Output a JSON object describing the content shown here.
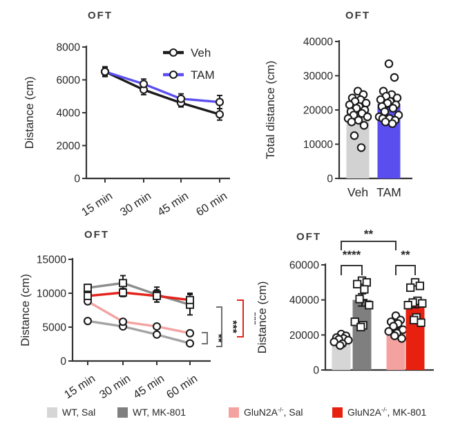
{
  "figure": {
    "background": "#ffffff",
    "text_color": "#262626",
    "axis_color": "#333333"
  },
  "chart_data": [
    {
      "id": "tl",
      "type": "line",
      "title": "OFT",
      "ylabel": "Distance (cm)",
      "xlabel": "",
      "ylim": [
        0,
        8000
      ],
      "yticks": [
        0,
        2000,
        4000,
        6000,
        8000
      ],
      "categories": [
        "15 min",
        "30 min",
        "45 min",
        "60 min"
      ],
      "legend_position": "top-right",
      "grid": false,
      "series": [
        {
          "name": "Veh",
          "color": "#1a1a1a",
          "marker": "circle",
          "values": [
            6500,
            5400,
            4600,
            3900
          ],
          "errors": [
            300,
            300,
            250,
            350
          ]
        },
        {
          "name": "TAM",
          "color": "#5a4fee",
          "marker": "circle",
          "values": [
            6500,
            5750,
            4850,
            4650
          ],
          "errors": [
            250,
            300,
            300,
            400
          ]
        }
      ]
    },
    {
      "id": "tr",
      "type": "bar",
      "title": "OFT",
      "ylabel": "Total distance (cm)",
      "xlabel": "",
      "ylim": [
        0,
        40000
      ],
      "yticks": [
        0,
        10000,
        20000,
        30000,
        40000
      ],
      "categories": [
        "Veh",
        "TAM"
      ],
      "show_category_labels": true,
      "grid": false,
      "bars": [
        {
          "name": "Veh",
          "color": "#d2d2d2",
          "value": 20300,
          "error": 900,
          "marker": "circle",
          "points": [
            9000,
            12500,
            15500,
            16500,
            17000,
            17500,
            18000,
            18500,
            19000,
            19500,
            20000,
            20500,
            21000,
            21500,
            22000,
            22500,
            23000,
            23500,
            24500,
            25500
          ]
        },
        {
          "name": "TAM",
          "color": "#5a4fee",
          "value": 21800,
          "error": 1000,
          "marker": "circle",
          "points": [
            16000,
            16500,
            17000,
            17500,
            17500,
            18000,
            18500,
            19500,
            20500,
            21000,
            21500,
            22000,
            22500,
            23000,
            23500,
            24000,
            24500,
            25500,
            29500,
            33500
          ]
        }
      ]
    },
    {
      "id": "bl",
      "type": "line",
      "title": "OFT",
      "ylabel": "Distance (cm)",
      "xlabel": "",
      "ylim": [
        0,
        15000
      ],
      "yticks": [
        0,
        5000,
        10000,
        15000
      ],
      "categories": [
        "15 min",
        "30 min",
        "45 min",
        "60 min"
      ],
      "grid": false,
      "series": [
        {
          "name": "WT, Sal",
          "color": "#a3a3a3",
          "marker": "circle",
          "values": [
            5900,
            5100,
            3900,
            2600
          ],
          "errors": [
            250,
            300,
            250,
            250
          ]
        },
        {
          "name": "WT, MK-801",
          "color": "#8c8c8c",
          "marker": "square",
          "values": [
            10800,
            11500,
            9800,
            8300
          ],
          "errors": [
            500,
            1100,
            1100,
            1500
          ]
        },
        {
          "name": "GluN2A-/-, Sal",
          "color": "#f2a3a1",
          "marker": "circle",
          "values": [
            8800,
            5800,
            5100,
            4100
          ],
          "errors": [
            400,
            350,
            300,
            300
          ]
        },
        {
          "name": "GluN2A-/-, MK-801",
          "color": "#e2231a",
          "marker": "square",
          "values": [
            9600,
            10100,
            9600,
            9000
          ],
          "errors": [
            700,
            600,
            900,
            1000
          ]
        }
      ],
      "significance": [
        {
          "label": "**",
          "color": "#6e6e6e"
        },
        {
          "label": "***",
          "color": "#6e6e6e"
        },
        {
          "label": "***",
          "color": "#e2231a"
        }
      ]
    },
    {
      "id": "br",
      "type": "bar",
      "title": "OFT",
      "ylabel": "Distance (cm)",
      "xlabel": "",
      "ylim": [
        0,
        60000
      ],
      "yticks": [
        0,
        20000,
        40000,
        60000
      ],
      "categories": [
        "WT, Sal",
        "WT, MK-801",
        "GluN2A-/-, Sal",
        "GluN2A-/-, MK-801"
      ],
      "show_category_labels": false,
      "grid": false,
      "bars": [
        {
          "name": "WT, Sal",
          "color": "#d6d6d6",
          "value": 17500,
          "error": 1200,
          "marker": "circle",
          "points": [
            14000,
            15000,
            16000,
            17000,
            17500,
            18000,
            18500,
            19500,
            20500
          ]
        },
        {
          "name": "WT, MK-801",
          "color": "#7f7f7f",
          "value": 40000,
          "error": 3500,
          "marker": "square",
          "points": [
            24500,
            25500,
            27500,
            37000,
            40500,
            46000,
            49000,
            50000,
            51000
          ]
        },
        {
          "name": "GluN2A-/-, Sal",
          "color": "#f4a29f",
          "value": 24000,
          "error": 1600,
          "marker": "circle",
          "points": [
            18000,
            19500,
            21000,
            22000,
            23000,
            25000,
            26500,
            27500,
            28500,
            31000
          ]
        },
        {
          "name": "GluN2A-/-, MK-801",
          "color": "#e8200f",
          "value": 38000,
          "error": 2500,
          "marker": "square",
          "points": [
            27000,
            28500,
            30000,
            37000,
            38000,
            38500,
            39500,
            47000,
            48000,
            50000
          ]
        }
      ],
      "significance": [
        {
          "from": 0,
          "to": 1,
          "label": "****",
          "row": 1
        },
        {
          "from": 2,
          "to": 3,
          "label": "**",
          "row": 1
        },
        {
          "from": 0,
          "to": 2,
          "label": "**",
          "row": 2
        }
      ]
    }
  ],
  "legend": {
    "items": [
      {
        "prefix": "WT, Sal",
        "sup": "",
        "suffix": "",
        "color": "#d6d6d6"
      },
      {
        "prefix": "WT, MK-801",
        "sup": "",
        "suffix": "",
        "color": "#7f7f7f"
      },
      {
        "prefix": "GluN2A",
        "sup": "-/-",
        "suffix": ", Sal",
        "color": "#f4a29f"
      },
      {
        "prefix": "GluN2A",
        "sup": "-/-",
        "suffix": ", MK-801",
        "color": "#e8200f"
      }
    ]
  }
}
